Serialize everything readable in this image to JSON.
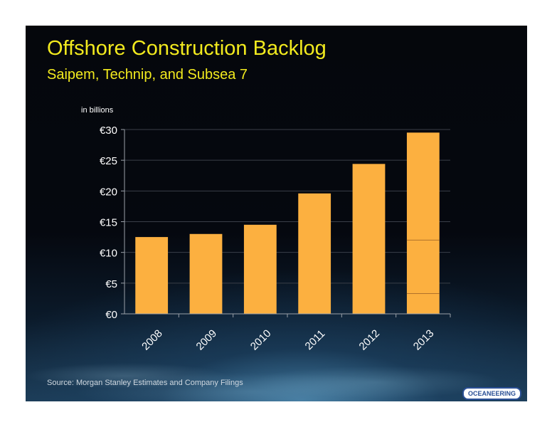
{
  "slide": {
    "title": "Offshore Construction Backlog",
    "subtitle": "Saipem, Technip, and Subsea 7",
    "source": "Source:  Morgan Stanley Estimates and Company Filings",
    "logo_text": "OCEANEERING",
    "colors": {
      "title": "#f2ea1e",
      "bar": "#fcb040",
      "background": "#05070c"
    }
  },
  "chart_data": {
    "type": "bar",
    "categories": [
      "2008",
      "2009",
      "2010",
      "2011",
      "2012",
      "2013"
    ],
    "values": [
      12.5,
      13,
      14.5,
      19.6,
      24.4,
      29.5
    ],
    "ylabel": "in billions",
    "ylim": [
      0,
      30
    ],
    "yticks": [
      0,
      5,
      10,
      15,
      20,
      25,
      30
    ],
    "ytick_labels": [
      "€0",
      "€5",
      "€10",
      "€15",
      "€20",
      "€25",
      "€30"
    ],
    "grid": true,
    "segment_dividers": [
      {
        "category": "2013",
        "values": [
          3.3,
          12
        ]
      }
    ]
  }
}
